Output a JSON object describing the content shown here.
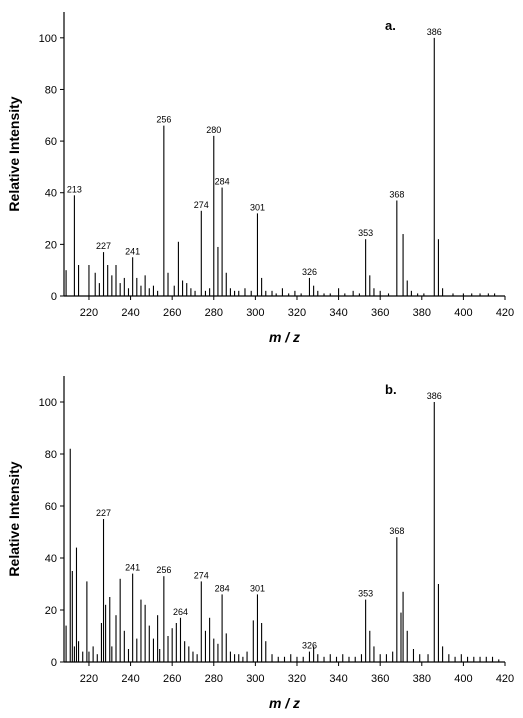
{
  "chart_data": [
    {
      "type": "bar",
      "panel_label": "a.",
      "xlabel": "m / z",
      "ylabel": "Relative Intensity",
      "xlim": [
        208,
        420
      ],
      "ylim": [
        0,
        110
      ],
      "xticks": [
        220,
        240,
        260,
        280,
        300,
        320,
        340,
        360,
        380,
        400,
        420
      ],
      "yticks": [
        0,
        20,
        40,
        60,
        80,
        100
      ],
      "grid": false,
      "x": [
        209,
        213,
        215,
        220,
        223,
        225,
        227,
        229,
        231,
        233,
        235,
        237,
        239,
        241,
        243,
        245,
        247,
        249,
        251,
        253,
        256,
        258,
        261,
        263,
        265,
        267,
        269,
        271,
        274,
        276,
        278,
        280,
        282,
        284,
        286,
        288,
        290,
        292,
        295,
        298,
        301,
        303,
        305,
        308,
        310,
        313,
        316,
        319,
        322,
        326,
        328,
        330,
        333,
        336,
        340,
        343,
        347,
        350,
        353,
        355,
        357,
        360,
        364,
        368,
        371,
        373,
        375,
        378,
        381,
        386,
        388,
        390,
        395,
        400,
        404,
        408,
        412,
        415
      ],
      "values": [
        10,
        39,
        12,
        12,
        9,
        5,
        17,
        12,
        8,
        12,
        5,
        7,
        3,
        15,
        7,
        4,
        8,
        3,
        4,
        2,
        66,
        9,
        4,
        21,
        6,
        5,
        3,
        2,
        33,
        2,
        3,
        62,
        19,
        42,
        9,
        3,
        2,
        2,
        3,
        2,
        32,
        7,
        2,
        2,
        1,
        3,
        1,
        2,
        1,
        7,
        4,
        2,
        1,
        1,
        3,
        1,
        2,
        1,
        22,
        8,
        3,
        2,
        1,
        37,
        24,
        6,
        2,
        1,
        1,
        100,
        22,
        3,
        1,
        1,
        1,
        1,
        1,
        1
      ],
      "labels": [
        {
          "x": 213,
          "y": 39,
          "text": "213"
        },
        {
          "x": 227,
          "y": 17,
          "text": "227"
        },
        {
          "x": 241,
          "y": 15,
          "text": "241"
        },
        {
          "x": 256,
          "y": 66,
          "text": "256"
        },
        {
          "x": 274,
          "y": 33,
          "text": "274"
        },
        {
          "x": 280,
          "y": 62,
          "text": "280"
        },
        {
          "x": 284,
          "y": 42,
          "text": "284"
        },
        {
          "x": 301,
          "y": 32,
          "text": "301"
        },
        {
          "x": 326,
          "y": 7,
          "text": "326"
        },
        {
          "x": 353,
          "y": 22,
          "text": "353"
        },
        {
          "x": 368,
          "y": 37,
          "text": "368"
        },
        {
          "x": 386,
          "y": 100,
          "text": "386"
        }
      ]
    },
    {
      "type": "bar",
      "panel_label": "b.",
      "xlabel": "m / z",
      "ylabel": "Relative Intensity",
      "xlim": [
        208,
        420
      ],
      "ylim": [
        0,
        110
      ],
      "xticks": [
        220,
        240,
        260,
        280,
        300,
        320,
        340,
        360,
        380,
        400,
        420
      ],
      "yticks": [
        0,
        20,
        40,
        60,
        80,
        100
      ],
      "grid": false,
      "x": [
        209,
        211,
        212,
        213,
        214,
        215,
        217,
        219,
        220,
        222,
        224,
        226,
        227,
        228,
        230,
        231,
        233,
        235,
        237,
        239,
        241,
        243,
        245,
        247,
        249,
        251,
        253,
        254,
        256,
        258,
        260,
        262,
        264,
        266,
        268,
        270,
        272,
        274,
        276,
        278,
        280,
        282,
        284,
        286,
        288,
        290,
        292,
        294,
        296,
        299,
        301,
        303,
        305,
        308,
        311,
        314,
        317,
        320,
        323,
        326,
        328,
        330,
        333,
        336,
        339,
        342,
        345,
        348,
        351,
        353,
        355,
        357,
        360,
        363,
        366,
        368,
        370,
        371,
        373,
        376,
        379,
        383,
        386,
        388,
        390,
        393,
        396,
        399,
        402,
        405,
        408,
        411,
        414,
        417
      ],
      "values": [
        14,
        82,
        35,
        6,
        44,
        8,
        4,
        31,
        4,
        6,
        3,
        15,
        55,
        22,
        25,
        6,
        18,
        32,
        12,
        5,
        34,
        9,
        24,
        22,
        14,
        9,
        18,
        5,
        33,
        10,
        13,
        15,
        17,
        8,
        6,
        4,
        3,
        31,
        12,
        17,
        9,
        7,
        26,
        11,
        4,
        3,
        3,
        2,
        4,
        16,
        26,
        15,
        8,
        3,
        2,
        2,
        3,
        2,
        2,
        4,
        6,
        3,
        2,
        3,
        2,
        3,
        2,
        2,
        3,
        24,
        12,
        6,
        3,
        3,
        4,
        48,
        19,
        27,
        12,
        5,
        3,
        3,
        100,
        30,
        6,
        3,
        2,
        3,
        2,
        2,
        2,
        2,
        2,
        1
      ],
      "labels": [
        {
          "x": 227,
          "y": 55,
          "text": "227"
        },
        {
          "x": 241,
          "y": 34,
          "text": "241"
        },
        {
          "x": 256,
          "y": 33,
          "text": "256"
        },
        {
          "x": 264,
          "y": 17,
          "text": "264"
        },
        {
          "x": 274,
          "y": 31,
          "text": "274"
        },
        {
          "x": 284,
          "y": 26,
          "text": "284"
        },
        {
          "x": 301,
          "y": 26,
          "text": "301"
        },
        {
          "x": 326,
          "y": 4,
          "text": "326"
        },
        {
          "x": 353,
          "y": 24,
          "text": "353"
        },
        {
          "x": 368,
          "y": 48,
          "text": "368"
        },
        {
          "x": 386,
          "y": 100,
          "text": "386"
        }
      ]
    }
  ]
}
